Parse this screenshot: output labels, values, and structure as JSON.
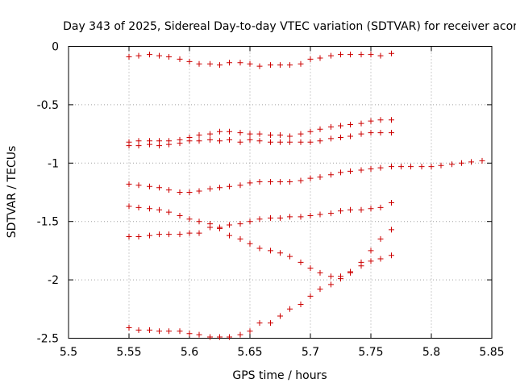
{
  "chart_data": {
    "type": "scatter",
    "title": "Day 343 of 2025, Sidereal Day-to-day VTEC variation (SDTVAR) for receiver acor",
    "xlabel": "GPS time / hours",
    "ylabel": "SDTVAR / TECUs",
    "xlim": [
      5.5,
      5.85
    ],
    "ylim": [
      -2.5,
      0
    ],
    "xticks": [
      "5.5",
      "5.55",
      "5.6",
      "5.65",
      "5.7",
      "5.75",
      "5.8",
      "5.85"
    ],
    "yticks": [
      "0",
      "-0.5",
      "-1",
      "-1.5",
      "-2",
      "-2.5"
    ],
    "grid": true,
    "marker": "+",
    "color": "#cc0000",
    "series": [
      {
        "name": "s1",
        "x": [
          5.55,
          5.558,
          5.567,
          5.575,
          5.583,
          5.592,
          5.6,
          5.608,
          5.617,
          5.625,
          5.633,
          5.642,
          5.65,
          5.658,
          5.667,
          5.675,
          5.683,
          5.692,
          5.7,
          5.708,
          5.717,
          5.725,
          5.733,
          5.742,
          5.75,
          5.758,
          5.767
        ],
        "y": [
          -0.09,
          -0.08,
          -0.07,
          -0.08,
          -0.09,
          -0.11,
          -0.13,
          -0.15,
          -0.15,
          -0.16,
          -0.14,
          -0.14,
          -0.15,
          -0.17,
          -0.16,
          -0.16,
          -0.16,
          -0.15,
          -0.11,
          -0.1,
          -0.08,
          -0.07,
          -0.07,
          -0.07,
          -0.07,
          -0.08,
          -0.06
        ]
      },
      {
        "name": "s2",
        "x": [
          5.55,
          5.558,
          5.567,
          5.575,
          5.583,
          5.592,
          5.6,
          5.608,
          5.617,
          5.625,
          5.633,
          5.642,
          5.65,
          5.658,
          5.667,
          5.675,
          5.683,
          5.692,
          5.7,
          5.708,
          5.717,
          5.725,
          5.733,
          5.742,
          5.75,
          5.758,
          5.767
        ],
        "y": [
          -0.82,
          -0.81,
          -0.81,
          -0.81,
          -0.81,
          -0.8,
          -0.78,
          -0.76,
          -0.75,
          -0.73,
          -0.73,
          -0.74,
          -0.75,
          -0.75,
          -0.76,
          -0.76,
          -0.77,
          -0.75,
          -0.73,
          -0.71,
          -0.69,
          -0.68,
          -0.67,
          -0.66,
          -0.64,
          -0.63,
          -0.63
        ]
      },
      {
        "name": "s3",
        "x": [
          5.55,
          5.558,
          5.567,
          5.575,
          5.583,
          5.592,
          5.6,
          5.608,
          5.617,
          5.625,
          5.633,
          5.642,
          5.65,
          5.658,
          5.667,
          5.675,
          5.683,
          5.692,
          5.7,
          5.708,
          5.717,
          5.725,
          5.733,
          5.742,
          5.75,
          5.758,
          5.767
        ],
        "y": [
          -0.85,
          -0.85,
          -0.84,
          -0.85,
          -0.84,
          -0.83,
          -0.81,
          -0.81,
          -0.8,
          -0.81,
          -0.8,
          -0.82,
          -0.8,
          -0.81,
          -0.82,
          -0.82,
          -0.82,
          -0.82,
          -0.82,
          -0.81,
          -0.79,
          -0.78,
          -0.77,
          -0.75,
          -0.74,
          -0.74,
          -0.74
        ]
      },
      {
        "name": "s4",
        "x": [
          5.55,
          5.558,
          5.567,
          5.575,
          5.583,
          5.592,
          5.6,
          5.608,
          5.617,
          5.625,
          5.633,
          5.642,
          5.65,
          5.658,
          5.667,
          5.675,
          5.683,
          5.692,
          5.7,
          5.708,
          5.717,
          5.725,
          5.733,
          5.742,
          5.75,
          5.758,
          5.767,
          5.775,
          5.783,
          5.792,
          5.8,
          5.808,
          5.817,
          5.825,
          5.833,
          5.842
        ],
        "y": [
          -1.18,
          -1.19,
          -1.2,
          -1.21,
          -1.23,
          -1.25,
          -1.25,
          -1.24,
          -1.22,
          -1.21,
          -1.2,
          -1.19,
          -1.17,
          -1.16,
          -1.16,
          -1.16,
          -1.16,
          -1.15,
          -1.13,
          -1.12,
          -1.1,
          -1.08,
          -1.07,
          -1.06,
          -1.05,
          -1.04,
          -1.03,
          -1.03,
          -1.03,
          -1.03,
          -1.03,
          -1.02,
          -1.01,
          -1.0,
          -0.99,
          -0.98
        ]
      },
      {
        "name": "s5",
        "x": [
          5.55,
          5.558,
          5.567,
          5.575,
          5.583,
          5.592,
          5.6,
          5.608,
          5.617,
          5.625,
          5.633,
          5.642,
          5.65,
          5.658,
          5.667,
          5.675,
          5.683,
          5.692,
          5.7,
          5.708,
          5.717,
          5.725,
          5.733,
          5.742,
          5.75,
          5.758,
          5.767
        ],
        "y": [
          -1.37,
          -1.38,
          -1.39,
          -1.4,
          -1.42,
          -1.45,
          -1.48,
          -1.5,
          -1.52,
          -1.55,
          -1.53,
          -1.52,
          -1.5,
          -1.48,
          -1.47,
          -1.47,
          -1.46,
          -1.46,
          -1.45,
          -1.44,
          -1.43,
          -1.41,
          -1.4,
          -1.4,
          -1.39,
          -1.38,
          -1.34
        ]
      },
      {
        "name": "s6",
        "x": [
          5.55,
          5.558,
          5.567,
          5.575,
          5.583,
          5.592,
          5.6,
          5.608,
          5.617,
          5.625,
          5.633,
          5.642,
          5.65,
          5.658,
          5.667,
          5.675,
          5.683,
          5.692,
          5.7,
          5.708,
          5.717,
          5.725,
          5.733,
          5.742,
          5.75,
          5.758,
          5.767
        ],
        "y": [
          -1.63,
          -1.63,
          -1.62,
          -1.61,
          -1.61,
          -1.61,
          -1.6,
          -1.6,
          -1.55,
          -1.56,
          -1.62,
          -1.65,
          -1.69,
          -1.73,
          -1.75,
          -1.77,
          -1.8,
          -1.85,
          -1.9,
          -1.94,
          -1.97,
          -1.97,
          -1.93,
          -1.88,
          -1.84,
          -1.82,
          -1.79
        ]
      },
      {
        "name": "s7",
        "x": [
          5.55,
          5.558,
          5.567,
          5.575,
          5.583,
          5.592,
          5.6,
          5.608,
          5.617,
          5.625,
          5.633,
          5.642,
          5.65,
          5.658,
          5.667,
          5.675,
          5.683,
          5.692,
          5.7,
          5.708,
          5.717,
          5.725,
          5.733,
          5.742,
          5.75,
          5.758,
          5.767
        ],
        "y": [
          -2.41,
          -2.43,
          -2.43,
          -2.44,
          -2.44,
          -2.44,
          -2.46,
          -2.47,
          -2.49,
          -2.49,
          -2.49,
          -2.47,
          -2.44,
          -2.37,
          -2.37,
          -2.31,
          -2.25,
          -2.21,
          -2.14,
          -2.08,
          -2.04,
          -1.99,
          -1.94,
          -1.85,
          -1.75,
          -1.65,
          -1.57
        ]
      }
    ]
  }
}
